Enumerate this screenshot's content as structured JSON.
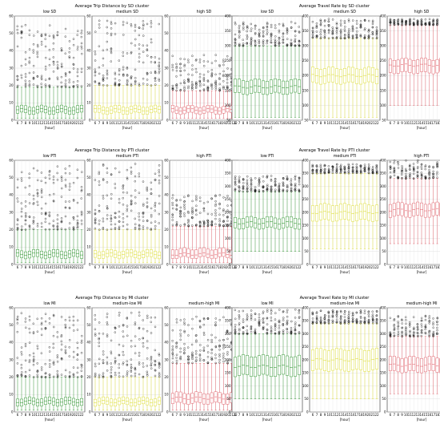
{
  "chart_data": [
    {
      "type": "box",
      "title": "Average Trip Distance by SD cluster",
      "xlabel": "[hour]",
      "ylim": [
        0,
        60
      ],
      "yticks": [
        0,
        10,
        20,
        30,
        40,
        50,
        60
      ],
      "categories": [
        "6",
        "7",
        "8",
        "9",
        "10",
        "11",
        "12",
        "13",
        "14",
        "15",
        "16",
        "17",
        "18",
        "19",
        "20",
        "21",
        "22"
      ],
      "panels": [
        {
          "name": "low SD",
          "color": "#3a9a3a",
          "q1": 4,
          "median": 6,
          "q3": 8,
          "whisker_low": 1,
          "whisker_high": 19,
          "outlier_top": 55
        },
        {
          "name": "medium SD",
          "color": "#dede3c",
          "q1": 4,
          "median": 6,
          "q3": 8,
          "whisker_low": 1,
          "whisker_high": 20,
          "outlier_top": 58
        },
        {
          "name": "high SD",
          "color": "#e0656e",
          "q1": 4,
          "median": 6,
          "q3": 8,
          "whisker_low": 1,
          "whisker_high": 17,
          "outlier_top": 38
        }
      ]
    },
    {
      "type": "box",
      "title": "Average Travel Rate by SD cluster",
      "xlabel": "[hour]",
      "ylim": [
        50,
        400
      ],
      "yticks": [
        50,
        100,
        150,
        200,
        250,
        300,
        350,
        400
      ],
      "categories": [
        "6",
        "7",
        "8",
        "9",
        "10",
        "11",
        "12",
        "13",
        "14",
        "15",
        "16",
        "17",
        "18",
        "19",
        "20",
        "21",
        "22"
      ],
      "panels": [
        {
          "name": "low SD",
          "color": "#3a9a3a",
          "q1": 140,
          "median": 162,
          "q3": 185,
          "whisker_low": 60,
          "whisker_high": 300,
          "outlier_top": 380
        },
        {
          "name": "medium SD",
          "color": "#dede3c",
          "q1": 175,
          "median": 200,
          "q3": 225,
          "whisker_low": 60,
          "whisker_high": 325,
          "outlier_top": 390
        },
        {
          "name": "high SD",
          "color": "#e0656e",
          "q1": 210,
          "median": 235,
          "q3": 255,
          "whisker_low": 100,
          "whisker_high": 370,
          "outlier_top": 390
        }
      ]
    },
    {
      "type": "box",
      "title": "Average Trip Distance by PTI cluster",
      "xlabel": "[hour]",
      "ylim": [
        0,
        60
      ],
      "yticks": [
        0,
        10,
        20,
        30,
        40,
        50,
        60
      ],
      "categories": [
        "6",
        "7",
        "8",
        "9",
        "10",
        "11",
        "12",
        "13",
        "14",
        "15",
        "16",
        "17",
        "18",
        "19",
        "20",
        "21",
        "22"
      ],
      "panels": [
        {
          "name": "low PTI",
          "color": "#3a9a3a",
          "q1": 4,
          "median": 6,
          "q3": 8,
          "whisker_low": 1,
          "whisker_high": 20,
          "outlier_top": 57
        },
        {
          "name": "medium PTI",
          "color": "#dede3c",
          "q1": 4,
          "median": 6,
          "q3": 8,
          "whisker_low": 1,
          "whisker_high": 20,
          "outlier_top": 58
        },
        {
          "name": "high PTI",
          "color": "#e0656e",
          "q1": 4,
          "median": 6,
          "q3": 9,
          "whisker_low": 1,
          "whisker_high": 22,
          "outlier_top": 40
        }
      ]
    },
    {
      "type": "box",
      "title": "Average Travel Rate by PTI cluster",
      "xlabel": "[hour]",
      "ylim": [
        0,
        400
      ],
      "yticks": [
        0,
        50,
        100,
        150,
        200,
        250,
        300,
        350,
        400
      ],
      "categories": [
        "6",
        "7",
        "8",
        "9",
        "10",
        "11",
        "12",
        "13",
        "14",
        "15",
        "16",
        "17",
        "18",
        "19",
        "20",
        "21",
        "22"
      ],
      "panels": [
        {
          "name": "low PTI",
          "color": "#3a9a3a",
          "q1": 140,
          "median": 160,
          "q3": 180,
          "whisker_low": 50,
          "whisker_high": 280,
          "outlier_top": 340
        },
        {
          "name": "medium PTI",
          "color": "#dede3c",
          "q1": 170,
          "median": 200,
          "q3": 230,
          "whisker_low": 60,
          "whisker_high": 350,
          "outlier_top": 385
        },
        {
          "name": "high PTI",
          "color": "#e0656e",
          "q1": 185,
          "median": 210,
          "q3": 235,
          "whisker_low": 80,
          "whisker_high": 330,
          "outlier_top": 400
        }
      ]
    },
    {
      "type": "box",
      "title": "Average Trip Distance by MI cluster",
      "xlabel": "[hour]",
      "ylim": [
        0,
        60
      ],
      "yticks": [
        0,
        10,
        20,
        30,
        40,
        50,
        60
      ],
      "categories": [
        "6",
        "7",
        "8",
        "9",
        "10",
        "11",
        "12",
        "13",
        "14",
        "15",
        "16",
        "17",
        "18",
        "19",
        "20",
        "21",
        "22"
      ],
      "panels": [
        {
          "name": "low MI",
          "color": "#3a9a3a",
          "q1": 4,
          "median": 6,
          "q3": 8,
          "whisker_low": 1,
          "whisker_high": 20,
          "outlier_top": 57
        },
        {
          "name": "medium-low MI",
          "color": "#dede3c",
          "q1": 4,
          "median": 6,
          "q3": 8,
          "whisker_low": 1,
          "whisker_high": 20,
          "outlier_top": 58
        },
        {
          "name": "medium-high MI",
          "color": "#e0656e",
          "q1": 5,
          "median": 8,
          "q3": 11,
          "whisker_low": 1,
          "whisker_high": 28,
          "outlier_top": 55
        }
      ]
    },
    {
      "type": "box",
      "title": "Average Travel Rate by MI cluster",
      "xlabel": "[hour]",
      "ylim": [
        0,
        400
      ],
      "yticks": [
        0,
        50,
        100,
        150,
        200,
        250,
        300,
        350,
        400
      ],
      "categories": [
        "6",
        "7",
        "8",
        "9",
        "10",
        "11",
        "12",
        "13",
        "14",
        "15",
        "16",
        "17",
        "18",
        "19",
        "20",
        "21",
        "22"
      ],
      "panels": [
        {
          "name": "low MI",
          "color": "#3a9a3a",
          "q1": 140,
          "median": 175,
          "q3": 215,
          "whisker_low": 50,
          "whisker_high": 300,
          "outlier_top": 395
        },
        {
          "name": "medium-low MI",
          "color": "#dede3c",
          "q1": 160,
          "median": 200,
          "q3": 240,
          "whisker_low": 50,
          "whisker_high": 340,
          "outlier_top": 390
        },
        {
          "name": "medium-high MI",
          "color": "#e0656e",
          "q1": 155,
          "median": 180,
          "q3": 210,
          "whisker_low": 70,
          "whisker_high": 290,
          "outlier_top": 370
        }
      ]
    }
  ]
}
